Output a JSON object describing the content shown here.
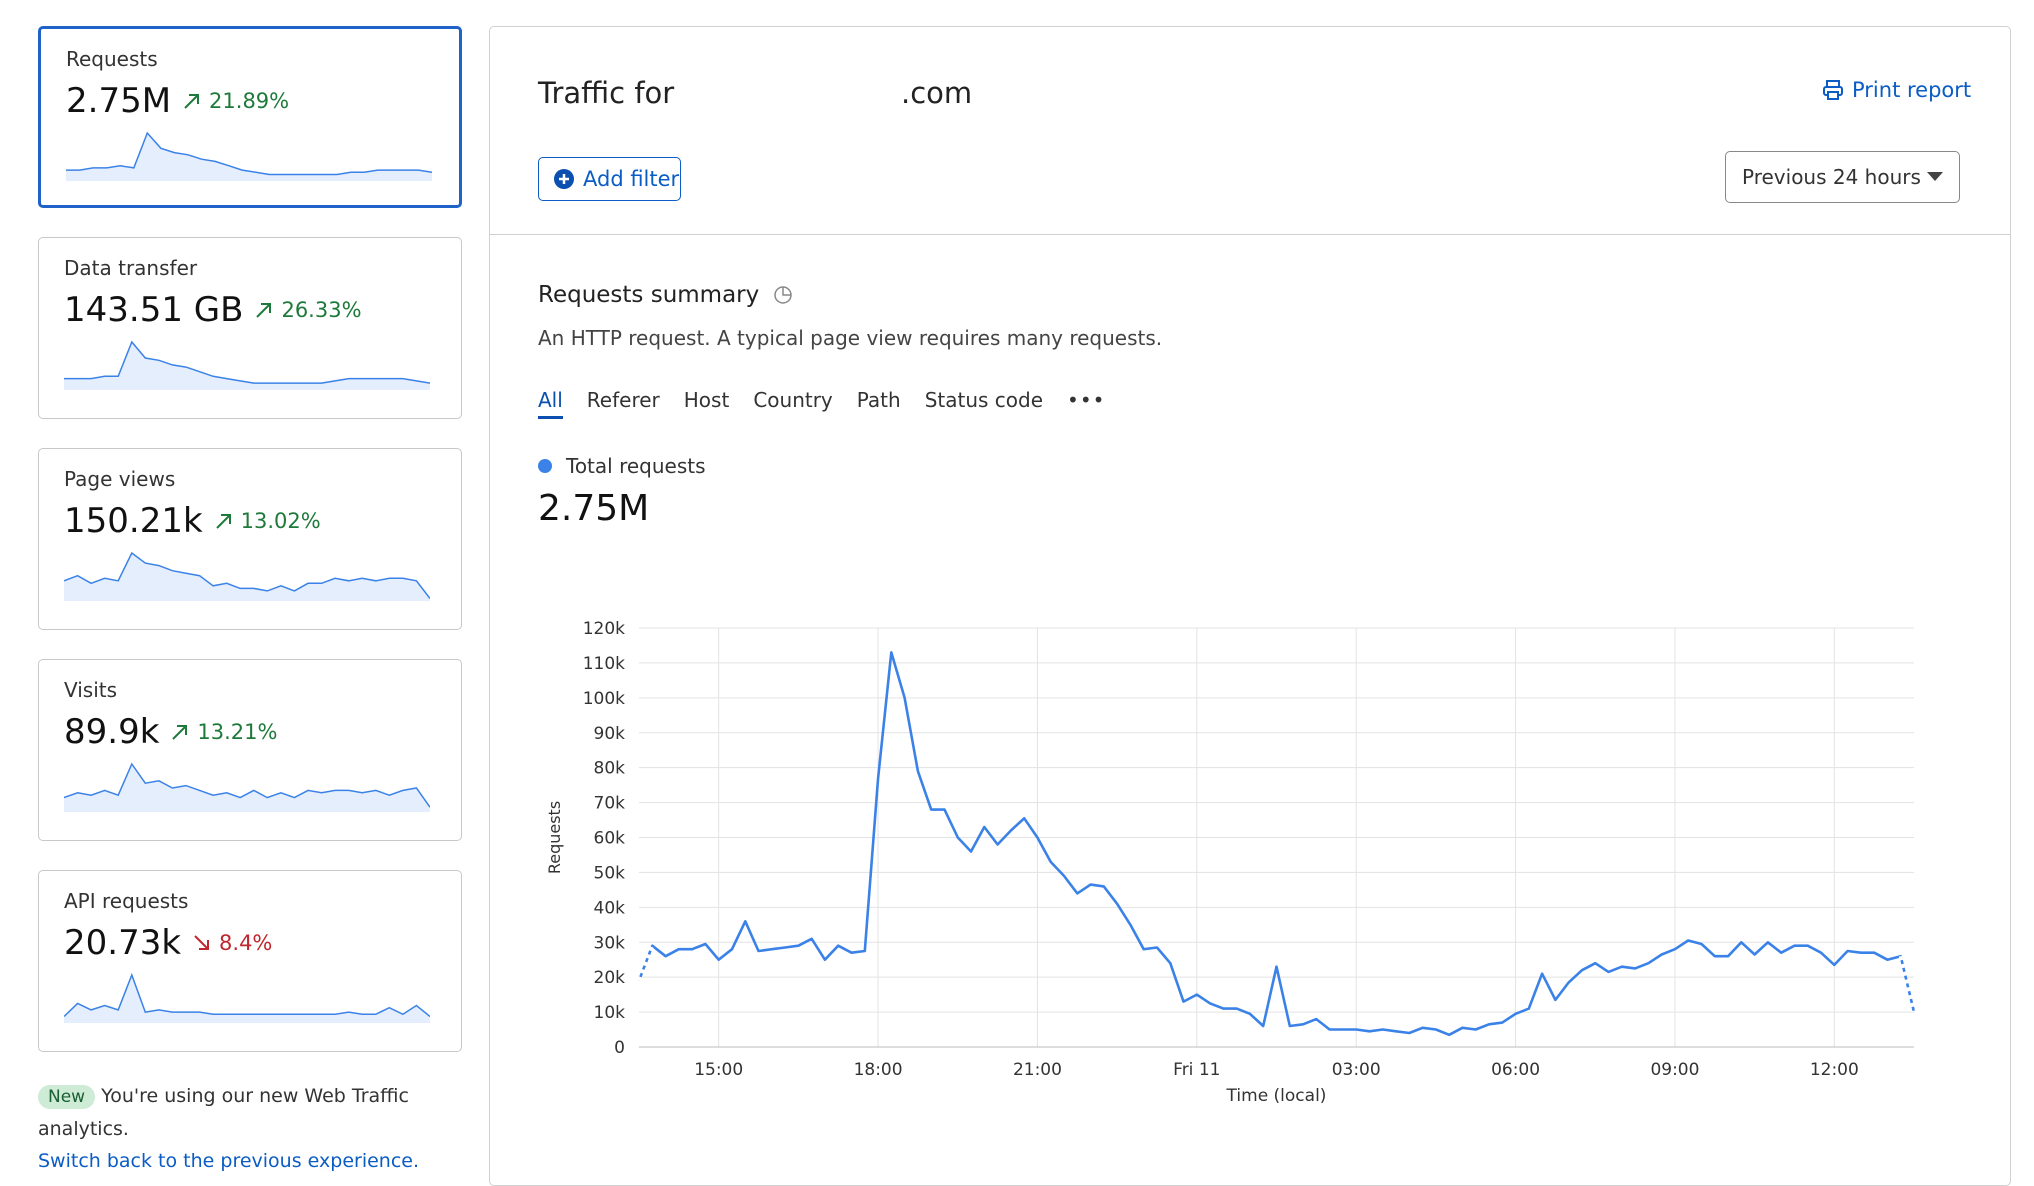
{
  "sidebar": {
    "cards": [
      {
        "label": "Requests",
        "value": "2.75M",
        "change": "21.89%",
        "color": "#1e7a3a",
        "selected": true,
        "sparkline": [
          5,
          5,
          6,
          6,
          7,
          6,
          22,
          15,
          13,
          12,
          10,
          9,
          7,
          5,
          4,
          3,
          3,
          3,
          3,
          3,
          3,
          4,
          4,
          5,
          5,
          5,
          5,
          4
        ]
      },
      {
        "label": "Data transfer",
        "value": "143.51 GB",
        "change": "26.33%",
        "color": "#1e7a3a",
        "selected": false,
        "sparkline": [
          5,
          5,
          5,
          6,
          6,
          21,
          14,
          13,
          11,
          10,
          8,
          6,
          5,
          4,
          3,
          3,
          3,
          3,
          3,
          3,
          4,
          5,
          5,
          5,
          5,
          5,
          4,
          3
        ]
      },
      {
        "label": "Page views",
        "value": "150.21k",
        "change": "13.02%",
        "color": "#1e7a3a",
        "selected": false,
        "sparkline": [
          8,
          10,
          7,
          9,
          8,
          19,
          15,
          14,
          12,
          11,
          10,
          6,
          7,
          5,
          5,
          4,
          6,
          4,
          7,
          7,
          9,
          8,
          9,
          8,
          9,
          9,
          8,
          1
        ]
      },
      {
        "label": "Visits",
        "value": "89.9k",
        "change": "13.21%",
        "color": "#1e7a3a",
        "selected": false,
        "sparkline": [
          6,
          8,
          7,
          9,
          7,
          20,
          12,
          13,
          10,
          11,
          9,
          7,
          8,
          6,
          9,
          6,
          8,
          6,
          9,
          8,
          9,
          9,
          8,
          9,
          7,
          9,
          10,
          2
        ]
      },
      {
        "label": "API requests",
        "value": "20.73k",
        "change": "8.4%",
        "color": "#c0262d",
        "selected": false,
        "sparkline": [
          3,
          9,
          6,
          8,
          6,
          22,
          5,
          6,
          5,
          5,
          5,
          4,
          4,
          4,
          4,
          4,
          4,
          4,
          4,
          4,
          4,
          5,
          4,
          4,
          7,
          4,
          8,
          3
        ]
      }
    ],
    "note": {
      "badge": "New",
      "text": "You're using our new Web Traffic analytics.",
      "link": "Switch back to the previous experience."
    }
  },
  "header": {
    "title_prefix": "Traffic for",
    "title_suffix": ".com",
    "print": "Print report",
    "add_filter": "Add filter",
    "range": "Previous 24 hours"
  },
  "summary": {
    "title": "Requests summary",
    "description": "An HTTP request. A typical page view requires many requests.",
    "tabs": [
      "All",
      "Referer",
      "Host",
      "Country",
      "Path",
      "Status code"
    ],
    "legend": "Total requests",
    "total": "2.75M"
  },
  "chart_data": {
    "type": "line",
    "ylabel": "Requests",
    "xlabel": "Time (local)",
    "color": "#3b82e8",
    "grid": true,
    "x": [
      13.5,
      13.75,
      14,
      14.25,
      14.5,
      14.75,
      15,
      15.25,
      15.5,
      15.75,
      16,
      16.25,
      16.5,
      16.75,
      17,
      17.25,
      17.5,
      17.75,
      18,
      18.25,
      18.5,
      18.75,
      19,
      19.25,
      19.5,
      19.75,
      20,
      20.25,
      20.5,
      20.75,
      21,
      21.25,
      21.5,
      21.75,
      22,
      22.25,
      22.5,
      22.75,
      23,
      23.25,
      23.5,
      23.75,
      24,
      24.25,
      24.5,
      24.75,
      25,
      25.25,
      25.5,
      25.75,
      26,
      26.25,
      26.5,
      26.75,
      27,
      27.25,
      27.5,
      27.75,
      28,
      28.25,
      28.5,
      28.75,
      29,
      29.25,
      29.5,
      29.75,
      30,
      30.25,
      30.5,
      30.75,
      31,
      31.25,
      31.5,
      31.75,
      32,
      32.25,
      32.5,
      32.75,
      33,
      33.25,
      33.5,
      33.75,
      34,
      34.25,
      34.5,
      34.75,
      35,
      35.25,
      35.5,
      35.75,
      36,
      36.25,
      36.5,
      36.75,
      37,
      37.25,
      37.5
    ],
    "values": [
      19000,
      29000,
      26000,
      28000,
      28000,
      29500,
      25000,
      28000,
      36000,
      27500,
      28000,
      28500,
      29000,
      31000,
      25000,
      29000,
      27000,
      27500,
      77000,
      113000,
      100000,
      79000,
      68000,
      68000,
      60000,
      56000,
      63000,
      58000,
      62000,
      65500,
      60000,
      53000,
      49000,
      44000,
      46500,
      46000,
      41000,
      35000,
      28000,
      28500,
      24000,
      13000,
      15000,
      12500,
      11000,
      11000,
      9500,
      6000,
      23000,
      6000,
      6500,
      8000,
      5000,
      5000,
      5000,
      4500,
      5000,
      4500,
      4000,
      5500,
      5000,
      3500,
      5500,
      5000,
      6500,
      7000,
      9500,
      11000,
      21000,
      13500,
      18500,
      22000,
      24000,
      21500,
      23000,
      22500,
      24000,
      26500,
      28000,
      30500,
      29500,
      26000,
      26000,
      30000,
      26500,
      30000,
      27000,
      29000,
      29000,
      27000,
      23500,
      27500,
      27000,
      27000,
      25000,
      26000,
      10000
    ],
    "xlim": [
      13.5,
      37.5
    ],
    "xticks": [
      {
        "value": 15,
        "label": "15:00"
      },
      {
        "value": 18,
        "label": "18:00"
      },
      {
        "value": 21,
        "label": "21:00"
      },
      {
        "value": 24,
        "label": "Fri 11"
      },
      {
        "value": 27,
        "label": "03:00"
      },
      {
        "value": 30,
        "label": "06:00"
      },
      {
        "value": 33,
        "label": "09:00"
      },
      {
        "value": 36,
        "label": "12:00"
      }
    ],
    "ylim": [
      0,
      120000
    ],
    "yticks": [
      0,
      {
        "value": 10000,
        "label": "10k"
      },
      {
        "value": 20000,
        "label": "20k"
      },
      {
        "value": 30000,
        "label": "30k"
      },
      {
        "value": 40000,
        "label": "40k"
      },
      {
        "value": 50000,
        "label": "50k"
      },
      {
        "value": 60000,
        "label": "60k"
      },
      {
        "value": 70000,
        "label": "70k"
      },
      {
        "value": 80000,
        "label": "80k"
      },
      {
        "value": 90000,
        "label": "90k"
      },
      {
        "value": 100000,
        "label": "100k"
      },
      {
        "value": 110000,
        "label": "110k"
      },
      {
        "value": 120000,
        "label": "120k"
      }
    ]
  }
}
